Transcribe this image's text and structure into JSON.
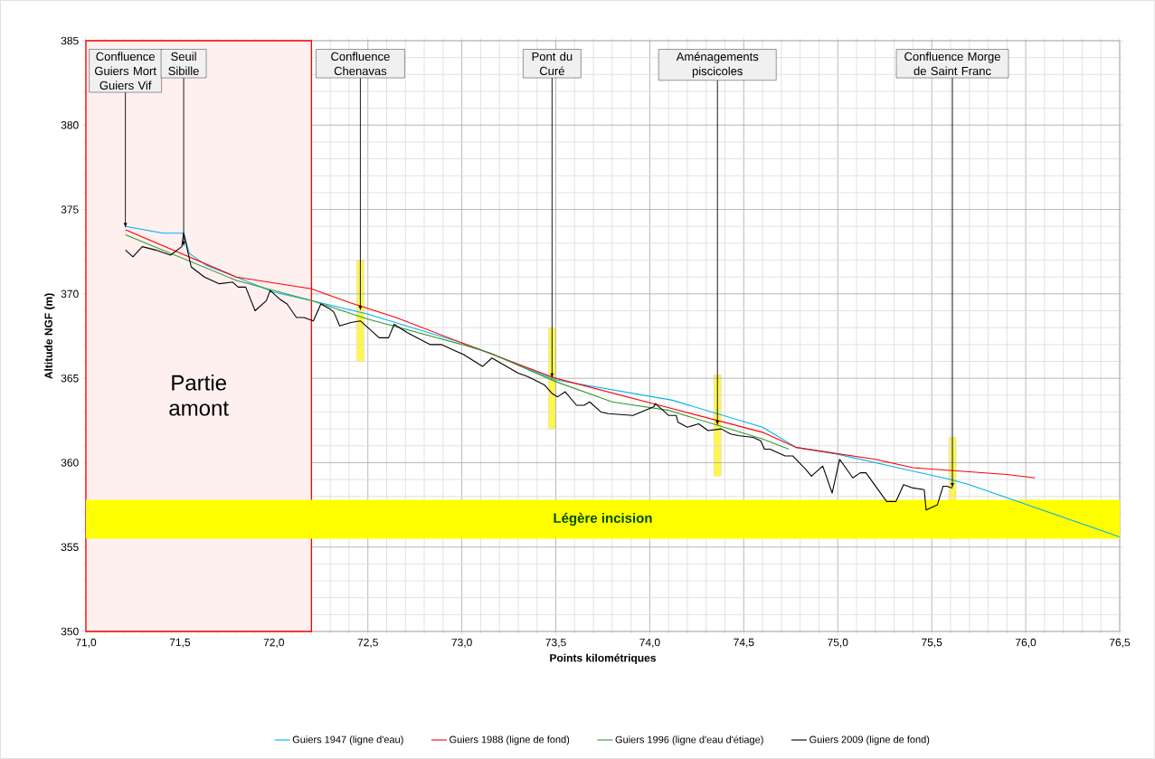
{
  "chart_data": {
    "type": "line",
    "xlabel": "Points kilométriques",
    "ylabel": "Altitude NGF (m)",
    "xlim": [
      71.0,
      76.5
    ],
    "ylim": [
      350,
      385
    ],
    "xticks": [
      {
        "value": 71.0,
        "label": "71,0"
      },
      {
        "value": 71.5,
        "label": "71,5"
      },
      {
        "value": 72.0,
        "label": "72,0"
      },
      {
        "value": 72.5,
        "label": "72,5"
      },
      {
        "value": 73.0,
        "label": "73,0"
      },
      {
        "value": 73.5,
        "label": "73,5"
      },
      {
        "value": 74.0,
        "label": "74,0"
      },
      {
        "value": 74.5,
        "label": "74,5"
      },
      {
        "value": 75.0,
        "label": "75,0"
      },
      {
        "value": 75.5,
        "label": "75,5"
      },
      {
        "value": 76.0,
        "label": "76,0"
      },
      {
        "value": 76.5,
        "label": "76,5"
      }
    ],
    "yticks": [
      350,
      355,
      360,
      365,
      370,
      375,
      380,
      385
    ],
    "grid": true,
    "legend": "bottom",
    "marker": "none",
    "line_style": "solid",
    "series": [
      {
        "name": "Guiers 1947 (ligne d'eau)",
        "color": "#00b0f0",
        "x": [
          71.21,
          71.41,
          71.52,
          71.55,
          71.64,
          71.8,
          72.0,
          72.2,
          72.5,
          73.0,
          73.15,
          73.5,
          74.12,
          74.6,
          74.78,
          75.0,
          75.6,
          75.7,
          76.5
        ],
        "values": [
          374.0,
          373.6,
          373.6,
          372.4,
          371.7,
          371.0,
          370.1,
          369.6,
          368.8,
          367.1,
          366.5,
          364.9,
          363.7,
          362.1,
          360.9,
          360.5,
          359.0,
          358.7,
          355.6
        ]
      },
      {
        "name": "Guiers 1988 (ligne de fond)",
        "color": "#ff0000",
        "x": [
          71.21,
          71.8,
          72.2,
          72.4,
          72.65,
          73.0,
          73.5,
          74.12,
          74.6,
          74.78,
          75.2,
          75.4,
          75.9,
          76.05
        ],
        "values": [
          373.8,
          371.0,
          370.3,
          369.5,
          368.6,
          367.1,
          365.0,
          363.2,
          361.8,
          360.9,
          360.2,
          359.7,
          359.3,
          359.1
        ]
      },
      {
        "name": "Guiers 1996 (ligne d'eau d'étiage)",
        "color": "#339933",
        "x": [
          71.21,
          71.8,
          72.2,
          72.5,
          73.0,
          73.15,
          73.5,
          73.8,
          74.1,
          74.6,
          74.74
        ],
        "values": [
          373.5,
          370.8,
          369.6,
          368.5,
          367.0,
          366.5,
          364.8,
          363.6,
          363.1,
          361.4,
          360.8
        ]
      },
      {
        "name": "Guiers 2009 (ligne de fond)",
        "color": "#000000",
        "x": [
          71.21,
          71.25,
          71.3,
          71.37,
          71.45,
          71.51,
          71.52,
          71.56,
          71.63,
          71.71,
          71.78,
          71.81,
          71.85,
          71.9,
          71.96,
          71.98,
          72.03,
          72.07,
          72.12,
          72.16,
          72.21,
          72.25,
          72.3,
          72.32,
          72.35,
          72.41,
          72.46,
          72.56,
          72.61,
          72.64,
          72.71,
          72.83,
          72.89,
          73.01,
          73.11,
          73.16,
          73.3,
          73.35,
          73.44,
          73.48,
          73.51,
          73.55,
          73.61,
          73.65,
          73.68,
          73.74,
          73.78,
          73.91,
          74.02,
          74.03,
          74.1,
          74.14,
          74.15,
          74.2,
          74.26,
          74.31,
          74.38,
          74.43,
          74.47,
          74.55,
          74.59,
          74.61,
          74.64,
          74.72,
          74.76,
          74.83,
          74.86,
          74.92,
          74.97,
          75.01,
          75.08,
          75.12,
          75.15,
          75.26,
          75.31,
          75.35,
          75.4,
          75.46,
          75.47,
          75.53,
          75.56,
          75.58,
          75.61
        ],
        "values": [
          372.6,
          372.2,
          372.8,
          372.6,
          372.3,
          372.8,
          373.6,
          371.6,
          371.0,
          370.6,
          370.7,
          370.4,
          370.4,
          369.0,
          369.6,
          370.2,
          369.7,
          369.4,
          368.6,
          368.6,
          368.4,
          369.4,
          369.1,
          368.9,
          368.1,
          368.3,
          368.4,
          367.4,
          367.4,
          368.2,
          367.7,
          367.0,
          367.0,
          366.4,
          365.7,
          366.2,
          365.3,
          365.1,
          364.6,
          364.1,
          363.9,
          364.2,
          363.4,
          363.4,
          363.6,
          363.0,
          362.9,
          362.8,
          363.3,
          363.5,
          362.8,
          362.8,
          362.4,
          362.1,
          362.3,
          361.9,
          362.0,
          361.7,
          361.6,
          361.5,
          361.3,
          360.8,
          360.8,
          360.4,
          360.4,
          359.6,
          359.2,
          359.8,
          358.2,
          360.2,
          359.1,
          359.4,
          359.4,
          357.7,
          357.7,
          358.7,
          358.5,
          358.4,
          357.2,
          357.5,
          358.6,
          358.6,
          358.5
        ]
      }
    ],
    "bands": [
      {
        "axis": "y",
        "from": 355.5,
        "to": 357.8,
        "label": "Légère incision",
        "color": "#ffff00"
      },
      {
        "axis": "x",
        "from": 71.0,
        "to": 72.2,
        "label": "Partie amont",
        "color": "#ff0000"
      }
    ],
    "annotations": [
      {
        "text": "Confluence Guiers Mort Guiers Vif",
        "x": 71.21,
        "y": 373.9
      },
      {
        "text": "Seuil Sibille",
        "x": 71.52,
        "y": 372.8
      },
      {
        "text": "Confluence Chenavas",
        "x": 72.46,
        "y": 369.0
      },
      {
        "text": "Pont du Curé",
        "x": 73.48,
        "y": 365.0
      },
      {
        "text": "Aménagements piscicoles",
        "x": 74.36,
        "y": 362.2
      },
      {
        "text": "Confluence Morge de Saint Franc",
        "x": 75.61,
        "y": 358.5
      }
    ]
  }
}
